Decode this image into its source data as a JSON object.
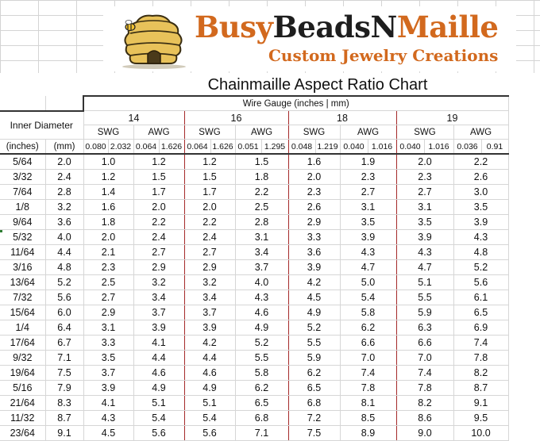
{
  "brand": {
    "name_part1": "Busy",
    "name_part2": "BeadsN",
    "name_part3": "Maille",
    "tagline": "Custom Jewelry Creations"
  },
  "sheet_title": "Chainmaille Aspect Ratio Chart",
  "header": {
    "wire_gauge_label": "Wire Gauge (inches | mm)",
    "inner_diameter_label": "Inner Diameter",
    "unit_inches": "(inches)",
    "unit_mm": "(mm)",
    "gauges": [
      {
        "gauge": "14",
        "swg_label": "SWG",
        "awg_label": "AWG",
        "swg_in": "0.080",
        "swg_mm": "2.032",
        "awg_in": "0.064",
        "awg_mm": "1.626"
      },
      {
        "gauge": "16",
        "swg_label": "SWG",
        "awg_label": "AWG",
        "swg_in": "0.064",
        "swg_mm": "1.626",
        "awg_in": "0.051",
        "awg_mm": "1.295"
      },
      {
        "gauge": "18",
        "swg_label": "SWG",
        "awg_label": "AWG",
        "swg_in": "0.048",
        "swg_mm": "1.219",
        "awg_in": "0.040",
        "awg_mm": "1.016"
      },
      {
        "gauge": "19",
        "swg_label": "SWG",
        "awg_label": "AWG",
        "swg_in": "0.040",
        "swg_mm": "1.016",
        "awg_in": "0.036",
        "awg_mm": "0.91"
      }
    ]
  },
  "rows": [
    {
      "id_in": "5/64",
      "id_mm": "2.0",
      "v": [
        "1.0",
        "1.2",
        "1.2",
        "1.5",
        "1.6",
        "1.9",
        "2.0",
        "2.2"
      ]
    },
    {
      "id_in": "3/32",
      "id_mm": "2.4",
      "v": [
        "1.2",
        "1.5",
        "1.5",
        "1.8",
        "2.0",
        "2.3",
        "2.3",
        "2.6"
      ]
    },
    {
      "id_in": "7/64",
      "id_mm": "2.8",
      "v": [
        "1.4",
        "1.7",
        "1.7",
        "2.2",
        "2.3",
        "2.7",
        "2.7",
        "3.0"
      ]
    },
    {
      "id_in": "1/8",
      "id_mm": "3.2",
      "v": [
        "1.6",
        "2.0",
        "2.0",
        "2.5",
        "2.6",
        "3.1",
        "3.1",
        "3.5"
      ]
    },
    {
      "id_in": "9/64",
      "id_mm": "3.6",
      "v": [
        "1.8",
        "2.2",
        "2.2",
        "2.8",
        "2.9",
        "3.5",
        "3.5",
        "3.9"
      ]
    },
    {
      "id_in": "5/32",
      "id_mm": "4.0",
      "v": [
        "2.0",
        "2.4",
        "2.4",
        "3.1",
        "3.3",
        "3.9",
        "3.9",
        "4.3"
      ]
    },
    {
      "id_in": "11/64",
      "id_mm": "4.4",
      "v": [
        "2.1",
        "2.7",
        "2.7",
        "3.4",
        "3.6",
        "4.3",
        "4.3",
        "4.8"
      ]
    },
    {
      "id_in": "3/16",
      "id_mm": "4.8",
      "v": [
        "2.3",
        "2.9",
        "2.9",
        "3.7",
        "3.9",
        "4.7",
        "4.7",
        "5.2"
      ]
    },
    {
      "id_in": "13/64",
      "id_mm": "5.2",
      "v": [
        "2.5",
        "3.2",
        "3.2",
        "4.0",
        "4.2",
        "5.0",
        "5.1",
        "5.6"
      ]
    },
    {
      "id_in": "7/32",
      "id_mm": "5.6",
      "v": [
        "2.7",
        "3.4",
        "3.4",
        "4.3",
        "4.5",
        "5.4",
        "5.5",
        "6.1"
      ]
    },
    {
      "id_in": "15/64",
      "id_mm": "6.0",
      "v": [
        "2.9",
        "3.7",
        "3.7",
        "4.6",
        "4.9",
        "5.8",
        "5.9",
        "6.5"
      ]
    },
    {
      "id_in": "1/4",
      "id_mm": "6.4",
      "v": [
        "3.1",
        "3.9",
        "3.9",
        "4.9",
        "5.2",
        "6.2",
        "6.3",
        "6.9"
      ]
    },
    {
      "id_in": "17/64",
      "id_mm": "6.7",
      "v": [
        "3.3",
        "4.1",
        "4.2",
        "5.2",
        "5.5",
        "6.6",
        "6.6",
        "7.4"
      ]
    },
    {
      "id_in": "9/32",
      "id_mm": "7.1",
      "v": [
        "3.5",
        "4.4",
        "4.4",
        "5.5",
        "5.9",
        "7.0",
        "7.0",
        "7.8"
      ]
    },
    {
      "id_in": "19/64",
      "id_mm": "7.5",
      "v": [
        "3.7",
        "4.6",
        "4.6",
        "5.8",
        "6.2",
        "7.4",
        "7.4",
        "8.2"
      ]
    },
    {
      "id_in": "5/16",
      "id_mm": "7.9",
      "v": [
        "3.9",
        "4.9",
        "4.9",
        "6.2",
        "6.5",
        "7.8",
        "7.8",
        "8.7"
      ]
    },
    {
      "id_in": "21/64",
      "id_mm": "8.3",
      "v": [
        "4.1",
        "5.1",
        "5.1",
        "6.5",
        "6.8",
        "8.1",
        "8.2",
        "9.1"
      ]
    },
    {
      "id_in": "11/32",
      "id_mm": "8.7",
      "v": [
        "4.3",
        "5.4",
        "5.4",
        "6.8",
        "7.2",
        "8.5",
        "8.6",
        "9.5"
      ]
    },
    {
      "id_in": "23/64",
      "id_mm": "9.1",
      "v": [
        "4.5",
        "5.6",
        "5.6",
        "7.1",
        "7.5",
        "8.9",
        "9.0",
        "10.0"
      ]
    }
  ]
}
